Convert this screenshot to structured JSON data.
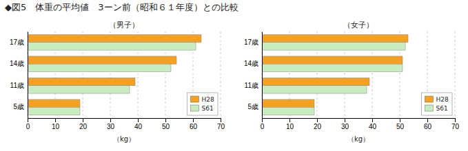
{
  "chart_data": [
    {
      "type": "bar",
      "orientation": "horizontal",
      "title": "◆図5　体重の平均値　3ーン前（昭和６１年度）との比較",
      "subtitle": "（男子）",
      "categories": [
        "5歳",
        "11歳",
        "14歳",
        "17歳"
      ],
      "series": [
        {
          "name": "H28",
          "color": "#F5A020",
          "values": [
            19.0,
            39.0,
            54.0,
            63.0
          ]
        },
        {
          "name": "S61",
          "color": "#C8EBC0",
          "values": [
            19.0,
            37.0,
            52.0,
            61.0
          ]
        }
      ],
      "xlim": [
        0,
        70
      ],
      "xticks": [
        0,
        10,
        20,
        30,
        40,
        50,
        60,
        70
      ],
      "xlabel": "（kg）",
      "grid": true,
      "legend": "lower right"
    },
    {
      "type": "bar",
      "orientation": "horizontal",
      "subtitle": "（女子）",
      "categories": [
        "5歳",
        "11歳",
        "14歳",
        "17歳"
      ],
      "series": [
        {
          "name": "H28",
          "color": "#F5A020",
          "values": [
            19.0,
            39.0,
            51.0,
            53.0
          ]
        },
        {
          "name": "S61",
          "color": "#C8EBC0",
          "values": [
            19.0,
            38.0,
            51.0,
            52.0
          ]
        }
      ],
      "xlim": [
        0,
        70
      ],
      "xticks": [
        0,
        10,
        20,
        30,
        40,
        50,
        60,
        70
      ],
      "xlabel": "（kg）",
      "grid": true,
      "legend": "lower right"
    }
  ]
}
